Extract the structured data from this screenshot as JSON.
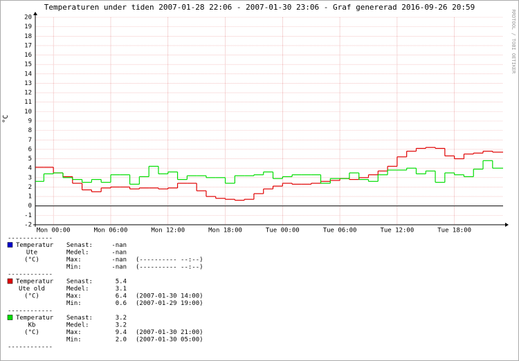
{
  "chart_data": {
    "type": "line",
    "step": true,
    "title": "Temperaturen under tiden 2007-01-28 22:06 - 2007-01-30 23:06   -   Graf genererad 2016-09-26 20:59",
    "y_label": "°C",
    "watermark": "RRDTOOL / TOBI OETIKER",
    "xlim": [
      -1.9,
      47.1
    ],
    "xticks": [
      {
        "value": 0,
        "label": "Mon 00:00"
      },
      {
        "value": 6,
        "label": "Mon 06:00"
      },
      {
        "value": 12,
        "label": "Mon 12:00"
      },
      {
        "value": 18,
        "label": "Mon 18:00"
      },
      {
        "value": 24,
        "label": "Tue 00:00"
      },
      {
        "value": 30,
        "label": "Tue 06:00"
      },
      {
        "value": 36,
        "label": "Tue 12:00"
      },
      {
        "value": 42,
        "label": "Tue 18:00"
      }
    ],
    "ylim": [
      -2,
      20
    ],
    "yticks": [
      -2,
      -1,
      0,
      1,
      2,
      3,
      4,
      5,
      6,
      7,
      8,
      9,
      10,
      11,
      12,
      13,
      14,
      15,
      16,
      17,
      18,
      19,
      20
    ],
    "grid": true,
    "x": [
      -1.9,
      -1,
      0,
      1,
      2,
      3,
      4,
      5,
      6,
      7,
      8,
      9,
      10,
      11,
      12,
      13,
      14,
      15,
      16,
      17,
      18,
      19,
      20,
      21,
      22,
      23,
      24,
      25,
      26,
      27,
      28,
      29,
      30,
      31,
      32,
      33,
      34,
      35,
      36,
      37,
      38,
      39,
      40,
      41,
      42,
      43,
      44,
      45,
      46
    ],
    "separator": "------------",
    "series": [
      {
        "name": "Temperatur",
        "subname": "Ute",
        "unit": "(°C)",
        "color": "#0000cc",
        "values": [
          null,
          null,
          null,
          null,
          null,
          null,
          null,
          null,
          null,
          null,
          null,
          null,
          null,
          null,
          null,
          null,
          null,
          null,
          null,
          null,
          null,
          null,
          null,
          null,
          null,
          null,
          null,
          null,
          null,
          null,
          null,
          null,
          null,
          null,
          null,
          null,
          null,
          null,
          null,
          null,
          null,
          null,
          null,
          null,
          null,
          null,
          null,
          null,
          null
        ],
        "stats": [
          [
            "Senast:",
            "-nan",
            ""
          ],
          [
            "Medel:",
            "-nan",
            ""
          ],
          [
            "Max:",
            "-nan",
            "(---------- --:--)"
          ],
          [
            "Min:",
            "-nan",
            "(---------- --:--)"
          ]
        ]
      },
      {
        "name": "Temperatur",
        "subname": "Ute old",
        "unit": "(°C)",
        "color": "#e00000",
        "values": [
          4.1,
          4.1,
          3.5,
          3.1,
          2.4,
          1.7,
          1.5,
          1.9,
          2.0,
          2.0,
          1.8,
          1.9,
          1.9,
          1.8,
          1.9,
          2.4,
          2.4,
          1.6,
          1.0,
          0.8,
          0.7,
          0.6,
          0.7,
          1.3,
          1.8,
          2.1,
          2.4,
          2.3,
          2.3,
          2.4,
          2.6,
          2.7,
          2.9,
          2.8,
          3.0,
          3.3,
          3.7,
          4.2,
          5.2,
          5.8,
          6.1,
          6.2,
          6.1,
          5.3,
          5.0,
          5.5,
          5.6,
          5.8,
          5.7
        ],
        "stats": [
          [
            "Senast:",
            "5.4",
            ""
          ],
          [
            "Medel:",
            "3.1",
            ""
          ],
          [
            "Max:",
            "6.4",
            "(2007-01-30 14:00)"
          ],
          [
            "Min:",
            "0.6",
            "(2007-01-29 19:00)"
          ]
        ]
      },
      {
        "name": "Temperatur",
        "subname": "Kb",
        "unit": "(°C)",
        "color": "#00dd00",
        "values": [
          2.6,
          3.4,
          3.5,
          3.0,
          2.8,
          2.5,
          2.8,
          2.5,
          3.3,
          3.3,
          2.3,
          3.1,
          4.2,
          3.4,
          3.6,
          2.8,
          3.2,
          3.2,
          3.0,
          3.0,
          2.4,
          3.2,
          3.2,
          3.3,
          3.6,
          2.9,
          3.1,
          3.3,
          3.3,
          3.3,
          2.4,
          2.9,
          2.9,
          3.5,
          2.8,
          2.6,
          3.3,
          3.8,
          3.8,
          4.0,
          3.4,
          3.7,
          2.5,
          3.5,
          3.3,
          3.1,
          3.9,
          4.8,
          4.0
        ],
        "stats": [
          [
            "Senast:",
            "3.2",
            ""
          ],
          [
            "Medel:",
            "3.2",
            ""
          ],
          [
            "Max:",
            "9.4",
            "(2007-01-30 21:00)"
          ],
          [
            "Min:",
            "2.0",
            "(2007-01-30 05:00)"
          ]
        ]
      }
    ]
  }
}
